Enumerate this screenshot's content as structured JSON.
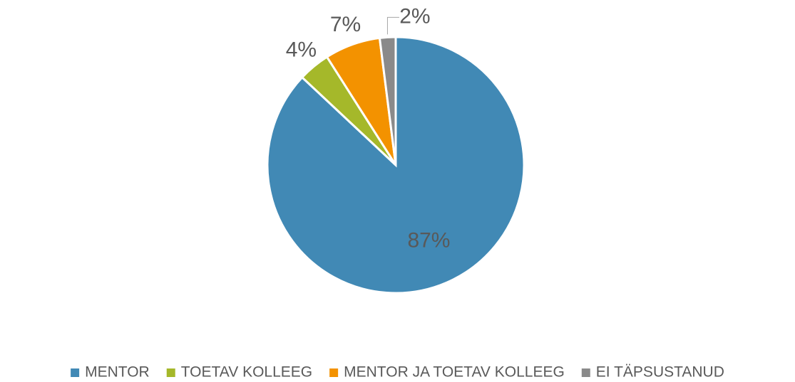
{
  "chart_data": {
    "type": "pie",
    "categories": [
      "MENTOR",
      "TOETAV KOLLEEG",
      "MENTOR JA TOETAV KOLLEEG",
      "EI TÄPSUSTANUD"
    ],
    "values": [
      87,
      4,
      7,
      2
    ],
    "value_labels": [
      "87%",
      "4%",
      "7%",
      "2%"
    ],
    "colors": [
      "#4189b5",
      "#a5b82a",
      "#f39200",
      "#8a8a8a"
    ],
    "legend": "bottom"
  }
}
